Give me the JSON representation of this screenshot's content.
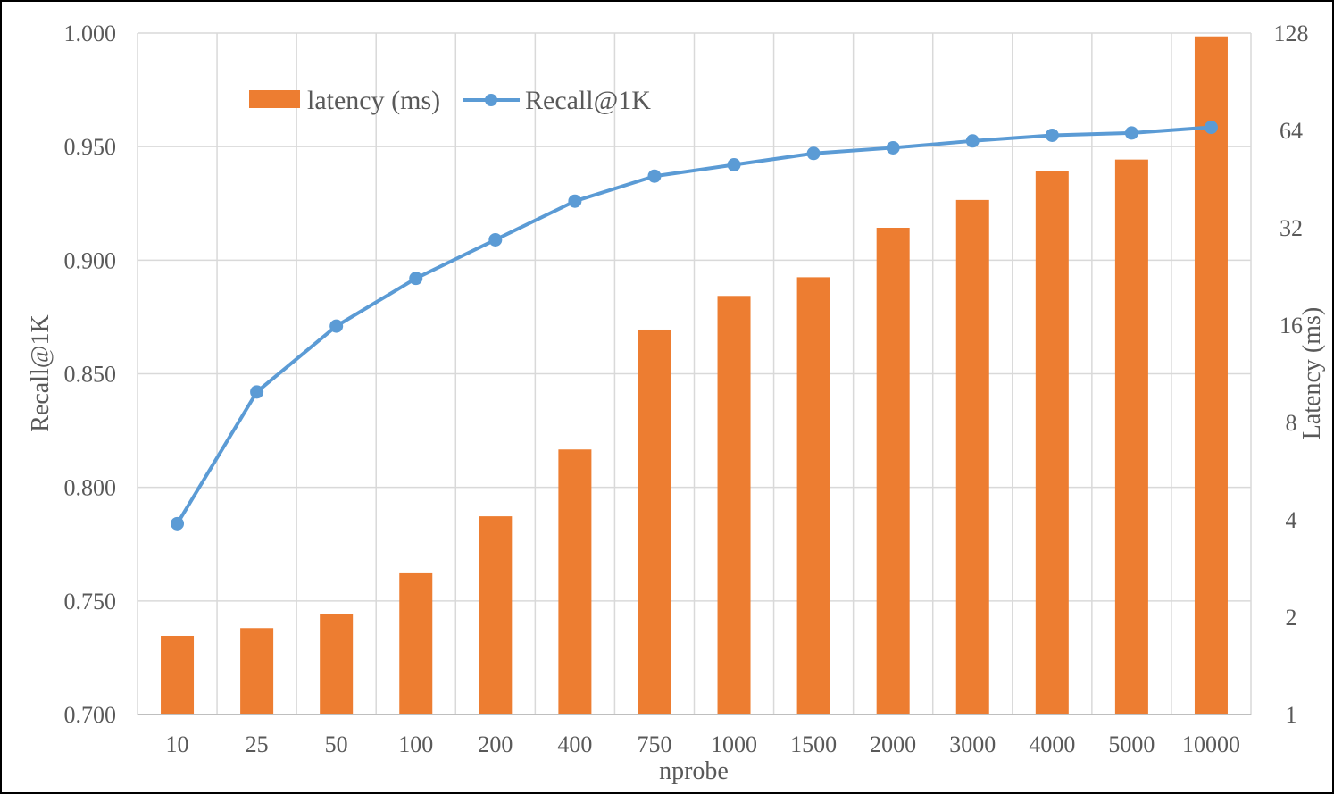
{
  "chart_data": {
    "type": "bar+line",
    "title": "",
    "xlabel": "nprobe",
    "ylabel_left": "Recall@1K",
    "ylabel_right": "Latency (ms)",
    "categories": [
      "10",
      "25",
      "50",
      "100",
      "200",
      "400",
      "750",
      "1000",
      "1500",
      "2000",
      "3000",
      "4000",
      "5000",
      "10000"
    ],
    "series": [
      {
        "name": "latency (ms)",
        "type": "bar",
        "axis": "right",
        "color": "#ED7D31",
        "values": [
          1.75,
          1.85,
          2.05,
          2.75,
          4.1,
          6.6,
          15.5,
          19.7,
          22.5,
          32.0,
          39.0,
          48.0,
          52.0,
          125.0
        ]
      },
      {
        "name": "Recall@1K",
        "type": "line",
        "axis": "left",
        "color": "#5B9BD5",
        "values": [
          0.784,
          0.842,
          0.871,
          0.892,
          0.909,
          0.926,
          0.937,
          0.942,
          0.947,
          0.9495,
          0.9525,
          0.955,
          0.956,
          0.9585
        ]
      }
    ],
    "ylim_left": [
      0.7,
      1.0
    ],
    "yticks_left": [
      "0.700",
      "0.750",
      "0.800",
      "0.850",
      "0.900",
      "0.950",
      "1.000"
    ],
    "ylim_right": [
      1,
      128
    ],
    "yscale_right": "log2",
    "yticks_right": [
      "1",
      "2",
      "4",
      "8",
      "16",
      "32",
      "64",
      "128"
    ],
    "grid": true,
    "legend_position": "top-left"
  }
}
